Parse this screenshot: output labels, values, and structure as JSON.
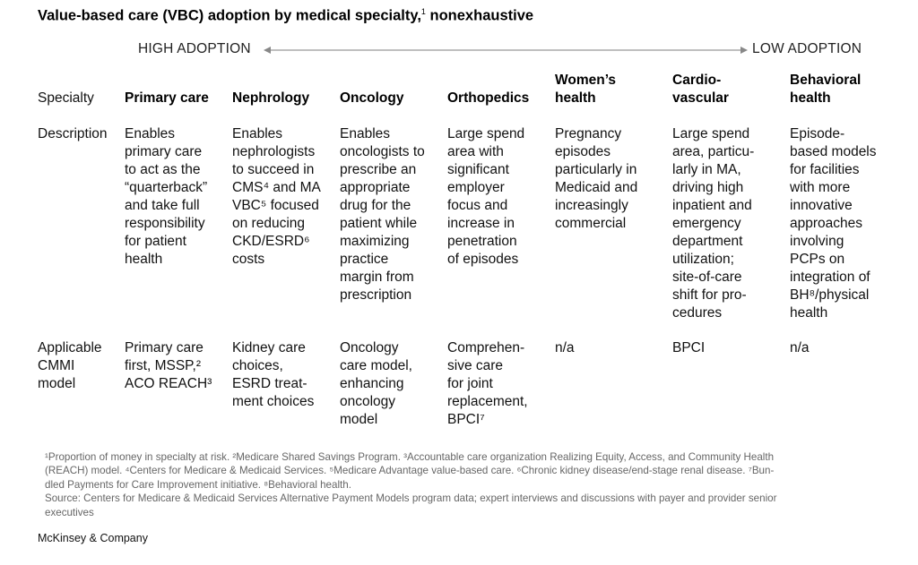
{
  "title": {
    "text": "Value-based care (VBC) adoption by medical specialty,",
    "sup": "1",
    "suffix": " nonexhaustive"
  },
  "scale": {
    "left": "HIGH ADOPTION",
    "right": "LOW ADOPTION"
  },
  "row_labels": {
    "specialty": "Specialty",
    "description": "Description",
    "model": "Applicable\nCMMI\nmodel"
  },
  "columns": [
    {
      "name": "Primary care",
      "description": "Enables\nprimary care\nto act as the\n“quarterback”\nand take full\nresponsibility\nfor patient\nhealth",
      "model": "Primary care\nfirst, MSSP,²\nACO REACH³"
    },
    {
      "name": "Nephrology",
      "description": "Enables\nnephrologists\nto succeed in\nCMS⁴ and MA\nVBC⁵ focused\non reducing\nCKD/ESRD⁶\ncosts",
      "model": "Kidney care\nchoices,\nESRD treat-\nment choices"
    },
    {
      "name": "Oncology",
      "description": "Enables\noncologists to\nprescribe an\nappropriate\ndrug for the\npatient while\nmaximizing\npractice\nmargin from\nprescription",
      "model": "Oncology\ncare model,\nenhancing\noncology\nmodel"
    },
    {
      "name": "Orthopedics",
      "description": "Large spend\narea with\nsignificant\nemployer\nfocus and\nincrease in\npenetration\nof episodes",
      "model": "Comprehen-\nsive care\nfor joint\nreplacement,\nBPCI⁷"
    },
    {
      "name": "Women’s\nhealth",
      "description": "Pregnancy\nepisodes\nparticularly in\nMedicaid and\nincreasingly\ncommercial",
      "model": "n/a"
    },
    {
      "name": "Cardio-\nvascular",
      "description": "Large spend\narea, particu-\nlarly in MA,\ndriving high\ninpatient and\nemergency\ndepartment\nutilization;\nsite-of-care\nshift for pro-\ncedures",
      "model": "BPCI"
    },
    {
      "name": "Behavioral\nhealth",
      "description": "Episode-\nbased models\nfor facilities\nwith more\ninnovative\napproaches\ninvolving\nPCPs on\nintegration of\nBH⁸/physical\nhealth",
      "model": "n/a"
    }
  ],
  "footnotes": [
    "¹Proportion of money in specialty at risk. ²Medicare Shared Savings Program. ³Accountable care organization Realizing Equity, Access, and Community Health",
    "(REACH) model. ⁴Centers for Medicare & Medicaid Services. ⁵Medicare Advantage value-based care. ⁶Chronic kidney disease/end-stage renal disease. ⁷Bun-",
    "dled Payments for Care Improvement initiative. ⁸Behavioral health."
  ],
  "source": "Source: Centers for Medicare & Medicaid Services Alternative Payment Models program data; expert interviews and discussions with payer and provider senior\nexecutives",
  "brand": "McKinsey & Company",
  "colors": {
    "text": "#111111",
    "footnote": "#666666",
    "arrow": "#999999"
  }
}
